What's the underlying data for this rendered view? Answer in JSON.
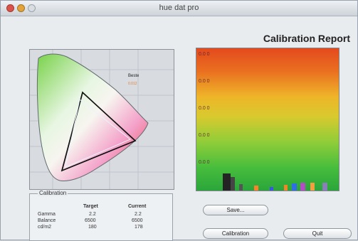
{
  "window": {
    "title": "hue dat pro"
  },
  "report": {
    "title": "Calibration Report"
  },
  "diagram": {
    "legend": {
      "title": "Beste",
      "value": "0.012"
    }
  },
  "histogram": {
    "labels": [
      "0.0 0",
      "0.0 0",
      "0.0 0",
      "0.0 0",
      "0.0 0"
    ]
  },
  "calibration": {
    "title": "Calibration",
    "headers": [
      "Target",
      "Current"
    ],
    "rows": [
      {
        "label": "Gamma",
        "target": "2.2",
        "current": "2.2"
      },
      {
        "label": "Balance",
        "target": "6500",
        "current": "6500"
      },
      {
        "label": "cd/m2",
        "target": "180",
        "current": "178"
      }
    ]
  },
  "buttons": {
    "save": "Save...",
    "calibration": "Calibration",
    "quit": "Quit"
  }
}
